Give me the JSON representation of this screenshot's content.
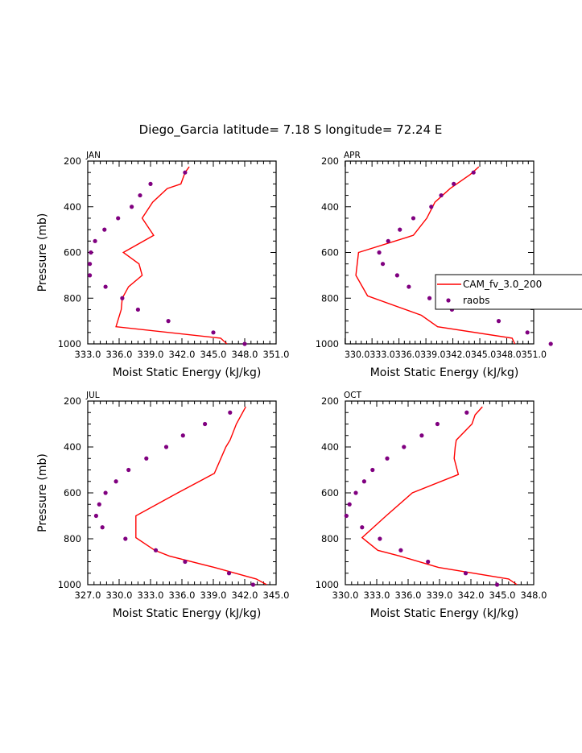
{
  "title": "Diego_Garcia  latitude= 7.18 S longitude= 72.24 E",
  "legend": {
    "entries": [
      "CAM_fv_3.0_200",
      "raobs"
    ],
    "colors": {
      "model": "#ff0000",
      "obs": "#800080"
    }
  },
  "chart_data": [
    {
      "type": "line",
      "panel": "JAN",
      "xlabel": "Moist Static Energy (kJ/kg)",
      "ylabel": "Pressure (mb)",
      "xlim": [
        333.0,
        351.0
      ],
      "ylim": [
        1000,
        200
      ],
      "xticks": [
        "333.0",
        "336.0",
        "339.0",
        "342.0",
        "345.0",
        "348.0",
        "351.0"
      ],
      "yticks": [
        "200",
        "400",
        "600",
        "800",
        "1000"
      ],
      "model": [
        [
          342.7,
          225
        ],
        [
          342.3,
          250
        ],
        [
          341.9,
          300
        ],
        [
          340.6,
          320
        ],
        [
          339.2,
          380
        ],
        [
          338.2,
          450
        ],
        [
          339.3,
          525
        ],
        [
          336.4,
          600
        ],
        [
          337.9,
          650
        ],
        [
          338.2,
          700
        ],
        [
          336.9,
          750
        ],
        [
          336.3,
          800
        ],
        [
          336.2,
          850
        ],
        [
          335.7,
          925
        ],
        [
          345.7,
          975
        ],
        [
          346.3,
          1000
        ]
      ],
      "raobs": [
        [
          342.3,
          250
        ],
        [
          339.0,
          300
        ],
        [
          338.0,
          350
        ],
        [
          337.2,
          400
        ],
        [
          335.9,
          450
        ],
        [
          334.6,
          500
        ],
        [
          333.7,
          550
        ],
        [
          333.3,
          600
        ],
        [
          333.2,
          650
        ],
        [
          333.2,
          700
        ],
        [
          334.7,
          750
        ],
        [
          336.3,
          800
        ],
        [
          337.8,
          850
        ],
        [
          340.7,
          900
        ],
        [
          345.0,
          950
        ],
        [
          348.0,
          1000
        ]
      ]
    },
    {
      "type": "line",
      "panel": "APR",
      "xlabel": "Moist Static Energy (kJ/kg)",
      "ylabel": "",
      "xlim": [
        330.03,
        351.0
      ],
      "ylim": [
        1000,
        200
      ],
      "xticks": [
        "330.0",
        "333.0",
        "336.0",
        "339.0",
        "342.0",
        "345.0",
        "348.0",
        "351.0"
      ],
      "tick_strip": "330.0333.0336.0339.0342.0345.0348.0351.0",
      "yticks": [
        "200",
        "400",
        "600",
        "800",
        "1000"
      ],
      "model": [
        [
          344.9,
          225
        ],
        [
          343.9,
          260
        ],
        [
          341.7,
          320
        ],
        [
          340.0,
          380
        ],
        [
          339.1,
          450
        ],
        [
          338.1,
          500
        ],
        [
          337.6,
          525
        ],
        [
          331.5,
          600
        ],
        [
          331.2,
          700
        ],
        [
          332.5,
          790
        ],
        [
          338.5,
          875
        ],
        [
          340.3,
          925
        ],
        [
          348.6,
          975
        ],
        [
          348.9,
          1000
        ]
      ],
      "raobs": [
        [
          344.3,
          250
        ],
        [
          342.1,
          300
        ],
        [
          340.7,
          350
        ],
        [
          339.6,
          400
        ],
        [
          337.6,
          450
        ],
        [
          336.1,
          500
        ],
        [
          334.8,
          550
        ],
        [
          333.8,
          600
        ],
        [
          334.2,
          650
        ],
        [
          335.8,
          700
        ],
        [
          337.1,
          750
        ],
        [
          339.4,
          800
        ],
        [
          341.9,
          850
        ],
        [
          347.1,
          900
        ],
        [
          350.3,
          950
        ],
        [
          352.9,
          1000
        ]
      ]
    },
    {
      "type": "line",
      "panel": "JUL",
      "xlabel": "Moist Static Energy (kJ/kg)",
      "ylabel": "Pressure (mb)",
      "xlim": [
        327.0,
        345.0
      ],
      "ylim": [
        1000,
        200
      ],
      "xticks": [
        "327.0",
        "330.0",
        "333.0",
        "336.0",
        "339.0",
        "342.0",
        "345.0"
      ],
      "yticks": [
        "200",
        "400",
        "600",
        "800",
        "1000"
      ],
      "model": [
        [
          342.1,
          225
        ],
        [
          341.2,
          300
        ],
        [
          340.6,
          370
        ],
        [
          340.2,
          400
        ],
        [
          339.1,
          515
        ],
        [
          335.6,
          600
        ],
        [
          331.6,
          700
        ],
        [
          331.6,
          795
        ],
        [
          333.4,
          850
        ],
        [
          334.8,
          875
        ],
        [
          339.1,
          925
        ],
        [
          343.1,
          975
        ],
        [
          344.1,
          1000
        ]
      ],
      "raobs": [
        [
          340.6,
          250
        ],
        [
          338.2,
          300
        ],
        [
          336.1,
          350
        ],
        [
          334.5,
          400
        ],
        [
          332.6,
          450
        ],
        [
          330.9,
          500
        ],
        [
          329.7,
          550
        ],
        [
          328.7,
          600
        ],
        [
          328.1,
          650
        ],
        [
          327.8,
          700
        ],
        [
          328.4,
          750
        ],
        [
          330.6,
          800
        ],
        [
          333.5,
          850
        ],
        [
          336.3,
          900
        ],
        [
          340.5,
          950
        ],
        [
          342.8,
          1000
        ]
      ]
    },
    {
      "type": "line",
      "panel": "OCT",
      "xlabel": "Moist Static Energy (kJ/kg)",
      "ylabel": "",
      "xlim": [
        330.0,
        348.0
      ],
      "ylim": [
        1000,
        200
      ],
      "xticks": [
        "330.0",
        "333.0",
        "336.0",
        "339.0",
        "342.0",
        "345.0",
        "348.0"
      ],
      "yticks": [
        "200",
        "400",
        "600",
        "800",
        "1000"
      ],
      "model": [
        [
          343.1,
          225
        ],
        [
          342.4,
          260
        ],
        [
          342.1,
          300
        ],
        [
          340.6,
          370
        ],
        [
          340.5,
          400
        ],
        [
          340.4,
          450
        ],
        [
          340.8,
          520
        ],
        [
          336.4,
          600
        ],
        [
          333.9,
          700
        ],
        [
          331.6,
          795
        ],
        [
          333.1,
          850
        ],
        [
          335.2,
          875
        ],
        [
          338.9,
          925
        ],
        [
          345.6,
          975
        ],
        [
          346.4,
          1000
        ]
      ],
      "raobs": [
        [
          341.6,
          250
        ],
        [
          338.8,
          300
        ],
        [
          337.3,
          350
        ],
        [
          335.6,
          400
        ],
        [
          334.0,
          450
        ],
        [
          332.6,
          500
        ],
        [
          331.8,
          550
        ],
        [
          331.0,
          600
        ],
        [
          330.4,
          650
        ],
        [
          330.1,
          700
        ],
        [
          331.6,
          750
        ],
        [
          333.3,
          800
        ],
        [
          335.3,
          850
        ],
        [
          337.9,
          900
        ],
        [
          341.5,
          950
        ],
        [
          344.5,
          1000
        ]
      ]
    }
  ]
}
